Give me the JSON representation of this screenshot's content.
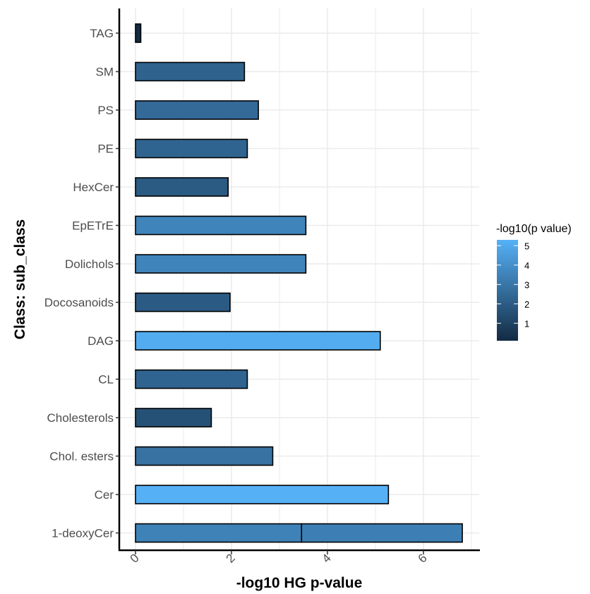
{
  "chart_data": {
    "type": "bar",
    "orientation": "horizontal",
    "stacked": true,
    "xlabel": "-log10 HG p-value",
    "ylabel": "Class: sub_class",
    "xlim": [
      0,
      7.15
    ],
    "x_ticks": [
      "0",
      "2",
      "4",
      "6"
    ],
    "x_tick_values": [
      0,
      2,
      4,
      6
    ],
    "grid": true,
    "legend": {
      "title": "-log10(p value)",
      "placement": "right",
      "type": "colorbar",
      "ticks": [
        "1",
        "2",
        "3",
        "4",
        "5"
      ],
      "tick_values": [
        1,
        2,
        3,
        4,
        5
      ],
      "range": [
        0.1,
        5.3
      ],
      "low_color": "#132B43",
      "high_color": "#56B1F7"
    },
    "categories": [
      "TAG",
      "SM",
      "PS",
      "PE",
      "HexCer",
      "EpETrE",
      "Dolichols",
      "Docosanoids",
      "DAG",
      "CL",
      "Cholesterols",
      "Chol. esters",
      "Cer",
      "1-deoxyCer"
    ],
    "bars": [
      {
        "category": "TAG",
        "segments": [
          0.11
        ]
      },
      {
        "category": "SM",
        "segments": [
          2.27
        ]
      },
      {
        "category": "PS",
        "segments": [
          2.56
        ]
      },
      {
        "category": "PE",
        "segments": [
          2.33
        ]
      },
      {
        "category": "HexCer",
        "segments": [
          1.93
        ]
      },
      {
        "category": "EpETrE",
        "segments": [
          3.55
        ]
      },
      {
        "category": "Dolichols",
        "segments": [
          3.55
        ]
      },
      {
        "category": "Docosanoids",
        "segments": [
          1.97
        ]
      },
      {
        "category": "DAG",
        "segments": [
          5.1
        ]
      },
      {
        "category": "CL",
        "segments": [
          2.33
        ]
      },
      {
        "category": "Cholesterols",
        "segments": [
          1.58
        ]
      },
      {
        "category": "Chol. esters",
        "segments": [
          2.86
        ]
      },
      {
        "category": "Cer",
        "segments": [
          5.27
        ]
      },
      {
        "category": "1-deoxyCer",
        "segments": [
          3.46,
          3.35
        ]
      }
    ]
  }
}
